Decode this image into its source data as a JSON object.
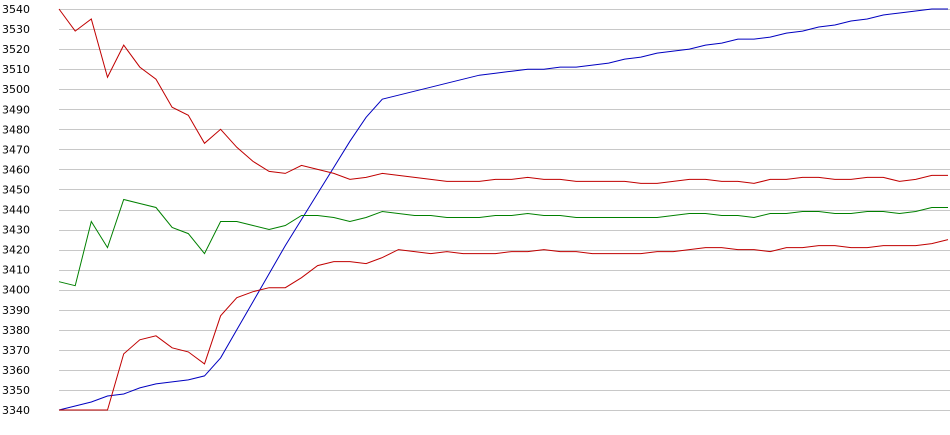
{
  "chart_data": {
    "type": "line",
    "title": "",
    "xlabel": "",
    "ylabel": "",
    "ylim": [
      3340,
      3540
    ],
    "y_ticks": [
      3340,
      3350,
      3360,
      3370,
      3380,
      3390,
      3400,
      3410,
      3420,
      3430,
      3440,
      3450,
      3460,
      3470,
      3480,
      3490,
      3500,
      3510,
      3520,
      3530,
      3540
    ],
    "grid": true,
    "legend": "none",
    "x": [
      0,
      1,
      2,
      3,
      4,
      5,
      6,
      7,
      8,
      9,
      10,
      11,
      12,
      13,
      14,
      15,
      16,
      17,
      18,
      19,
      20,
      21,
      22,
      23,
      24,
      25,
      26,
      27,
      28,
      29,
      30,
      31,
      32,
      33,
      34,
      35,
      36,
      37,
      38,
      39,
      40,
      41,
      42,
      43,
      44,
      45,
      46,
      47,
      48,
      49,
      50,
      51,
      52,
      53,
      54,
      55
    ],
    "series": [
      {
        "color": "#0000c0",
        "values": [
          3340,
          3342,
          3344,
          3347,
          3348,
          3351,
          3353,
          3354,
          3355,
          3357,
          3366,
          3380,
          3394,
          3408,
          3422,
          3435,
          3448,
          3461,
          3474,
          3486,
          3495,
          3497,
          3499,
          3501,
          3503,
          3505,
          3507,
          3508,
          3509,
          3510,
          3510,
          3511,
          3511,
          3512,
          3513,
          3515,
          3516,
          3518,
          3519,
          3520,
          3522,
          3523,
          3525,
          3525,
          3526,
          3528,
          3529,
          3531,
          3532,
          3534,
          3535,
          3537,
          3538,
          3539,
          3540,
          3540
        ]
      },
      {
        "color": "#c00000",
        "values": [
          3540,
          3529,
          3535,
          3506,
          3522,
          3511,
          3505,
          3491,
          3487,
          3473,
          3480,
          3471,
          3464,
          3459,
          3458,
          3462,
          3460,
          3458,
          3455,
          3456,
          3458,
          3457,
          3456,
          3455,
          3454,
          3454,
          3454,
          3455,
          3455,
          3456,
          3455,
          3455,
          3454,
          3454,
          3454,
          3454,
          3453,
          3453,
          3454,
          3455,
          3455,
          3454,
          3454,
          3453,
          3455,
          3455,
          3456,
          3456,
          3455,
          3455,
          3456,
          3456,
          3454,
          3455,
          3457,
          3457
        ]
      },
      {
        "color": "#008000",
        "values": [
          3404,
          3402,
          3434,
          3421,
          3445,
          3443,
          3441,
          3431,
          3428,
          3418,
          3434,
          3434,
          3432,
          3430,
          3432,
          3437,
          3437,
          3436,
          3434,
          3436,
          3439,
          3438,
          3437,
          3437,
          3436,
          3436,
          3436,
          3437,
          3437,
          3438,
          3437,
          3437,
          3436,
          3436,
          3436,
          3436,
          3436,
          3436,
          3437,
          3438,
          3438,
          3437,
          3437,
          3436,
          3438,
          3438,
          3439,
          3439,
          3438,
          3438,
          3439,
          3439,
          3438,
          3439,
          3441,
          3441
        ]
      },
      {
        "color": "#c00000",
        "values": [
          3340,
          3340,
          3340,
          3340,
          3368,
          3375,
          3377,
          3371,
          3369,
          3363,
          3387,
          3396,
          3399,
          3401,
          3401,
          3406,
          3412,
          3414,
          3414,
          3413,
          3416,
          3420,
          3419,
          3418,
          3419,
          3418,
          3418,
          3418,
          3419,
          3419,
          3420,
          3419,
          3419,
          3418,
          3418,
          3418,
          3418,
          3419,
          3419,
          3420,
          3421,
          3421,
          3420,
          3420,
          3419,
          3421,
          3421,
          3422,
          3422,
          3421,
          3421,
          3422,
          3422,
          3422,
          3423,
          3425
        ]
      }
    ]
  }
}
